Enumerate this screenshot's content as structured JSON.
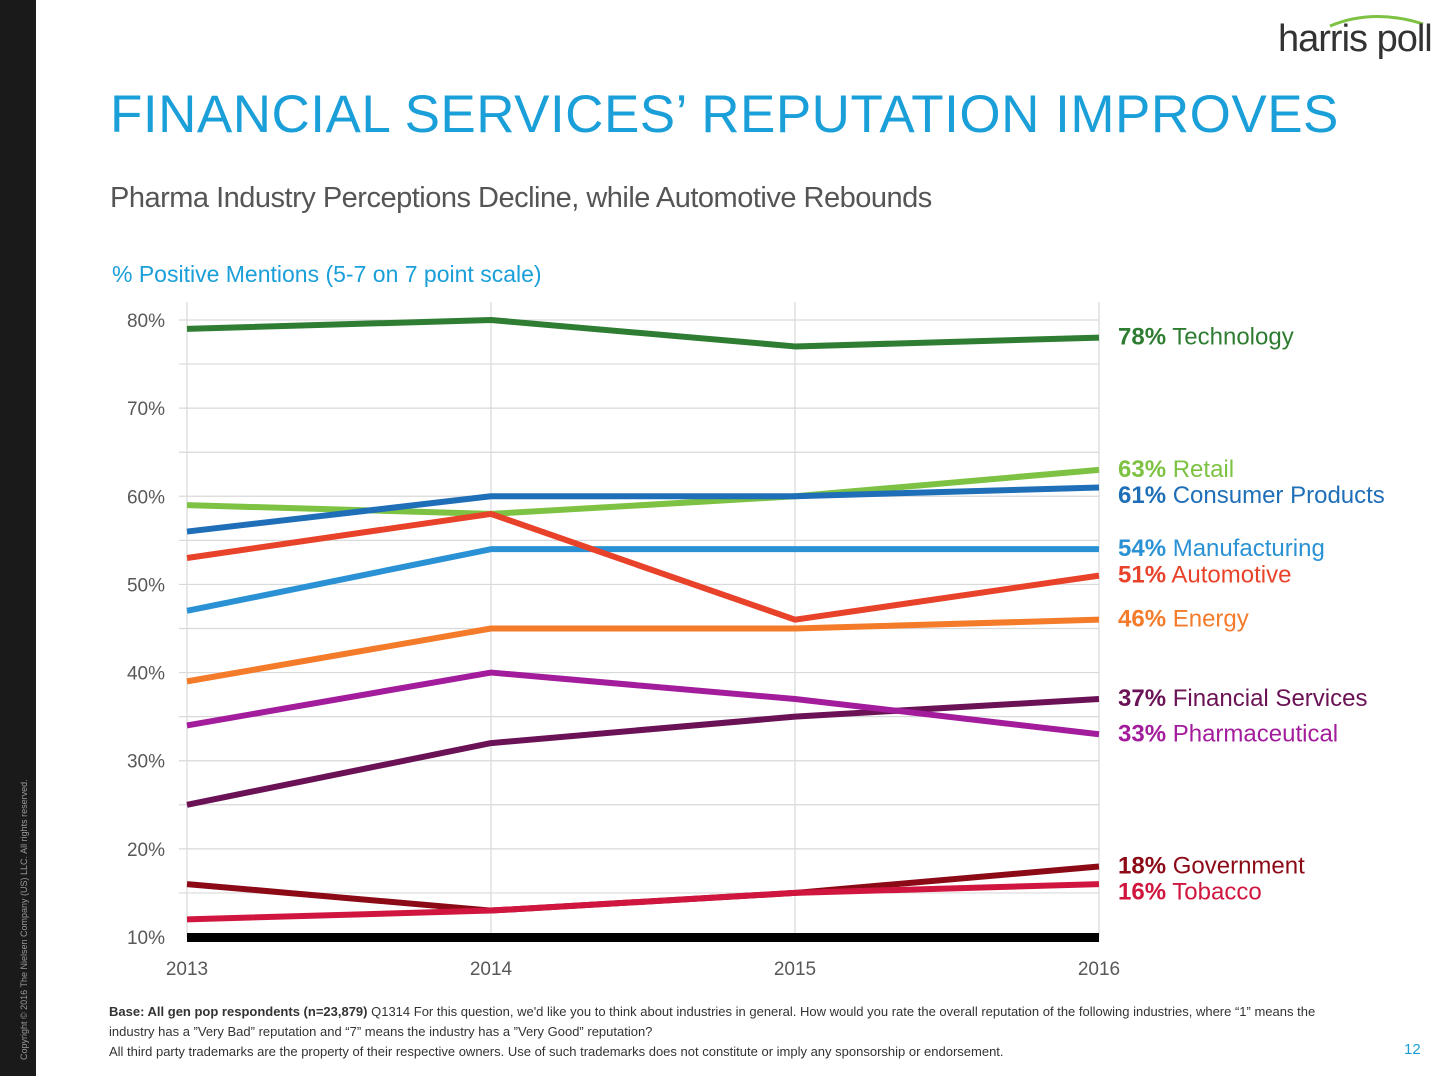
{
  "brand": {
    "logo_text": "harris poll"
  },
  "page": {
    "title": "FINANCIAL SERVICES’ REPUTATION IMPROVES",
    "subtitle": "Pharma Industry Perceptions Decline, while Automotive Rebounds",
    "chart_caption": "% Positive Mentions (5-7 on 7 point scale)",
    "page_number": "12",
    "copyright": "Copyright © 2016 The Nielsen Company (US) LLC. All rights reserved."
  },
  "footnote": {
    "base_bold": "Base: All gen pop respondents (n=23,879)",
    "question": " Q1314  For this question, we'd like you to think about industries in general. How would you rate the overall reputation of the following industries, where “1” means the industry has a  ”Very Bad” reputation and “7” means the industry has a ”Very Good” reputation?",
    "trademarks": "All third party trademarks are the property of their respective owners. Use of such trademarks does not constitute or imply any sponsorship or endorsement."
  },
  "colors": {
    "title": "#1a9fd9",
    "grid": "#d9d9d9",
    "baseline": "#000000"
  },
  "chart_data": {
    "type": "line",
    "x": [
      "2013",
      "2014",
      "2015",
      "2016"
    ],
    "ylim": [
      10,
      80
    ],
    "yticks": [
      10,
      20,
      30,
      40,
      50,
      60,
      70,
      80
    ],
    "ytick_labels": [
      "10%",
      "20%",
      "30%",
      "40%",
      "50%",
      "60%",
      "70%",
      "80%"
    ],
    "grid": true,
    "series": [
      {
        "name": "Technology",
        "end_label": "78%",
        "color": "#2e7d32",
        "values": [
          79,
          80,
          77,
          78
        ]
      },
      {
        "name": "Retail",
        "end_label": "63%",
        "color": "#7dc242",
        "values": [
          59,
          58,
          60,
          63
        ]
      },
      {
        "name": "Consumer Products",
        "end_label": "61%",
        "color": "#1f6fb8",
        "values": [
          56,
          60,
          60,
          61
        ]
      },
      {
        "name": "Manufacturing",
        "end_label": "54%",
        "color": "#2a92d4",
        "values": [
          47,
          54,
          54,
          54
        ]
      },
      {
        "name": "Automotive",
        "end_label": "51%",
        "color": "#e8432a",
        "values": [
          53,
          58,
          46,
          51
        ]
      },
      {
        "name": "Energy",
        "end_label": "46%",
        "color": "#f47b2a",
        "values": [
          39,
          45,
          45,
          46
        ]
      },
      {
        "name": "Financial Services",
        "end_label": "37%",
        "color": "#6a1255",
        "values": [
          25,
          32,
          35,
          37
        ]
      },
      {
        "name": "Pharmaceutical",
        "end_label": "33%",
        "color": "#a21c9c",
        "values": [
          34,
          40,
          37,
          33
        ]
      },
      {
        "name": "Government",
        "end_label": "18%",
        "color": "#8b0a16",
        "values": [
          16,
          13,
          15,
          18
        ]
      },
      {
        "name": "Tobacco",
        "end_label": "16%",
        "color": "#d0163f",
        "values": [
          12,
          13,
          15,
          16
        ]
      }
    ]
  }
}
